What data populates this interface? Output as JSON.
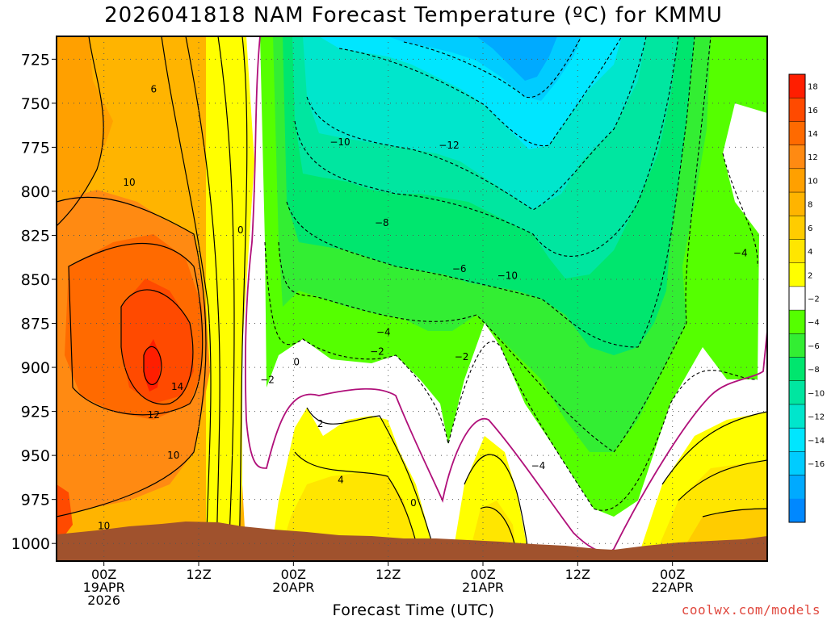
{
  "title": "2026041818 NAM Forecast Temperature (ºC) for KMMU",
  "xlabel": "Forecast Time (UTC)",
  "credit": "coolwx.com/models",
  "chart_data": {
    "type": "heatmap",
    "title": "2026041818 NAM Forecast Temperature (ºC) for KMMU",
    "xlabel": "Forecast Time (UTC)",
    "ylabel": "",
    "y_axis_reversed": true,
    "ylim": [
      1010,
      712
    ],
    "xlim": [
      -6,
      84
    ],
    "x_ticks": [
      {
        "hour": 0,
        "label": [
          "00Z",
          "19APR",
          "2026"
        ]
      },
      {
        "hour": 12,
        "label": [
          "12Z"
        ]
      },
      {
        "hour": 24,
        "label": [
          "00Z",
          "20APR"
        ]
      },
      {
        "hour": 36,
        "label": [
          "12Z"
        ]
      },
      {
        "hour": 48,
        "label": [
          "00Z",
          "21APR"
        ]
      },
      {
        "hour": 60,
        "label": [
          "12Z"
        ]
      },
      {
        "hour": 72,
        "label": [
          "00Z",
          "22APR"
        ]
      }
    ],
    "y_ticks": [
      725,
      750,
      775,
      800,
      825,
      850,
      875,
      900,
      925,
      950,
      975,
      1000
    ],
    "colorbar": {
      "labels": [
        18,
        16,
        14,
        12,
        10,
        8,
        6,
        4,
        2,
        -2,
        -4,
        -6,
        -8,
        -10,
        -12,
        -14,
        -16
      ],
      "colors": [
        "#ff1e00",
        "#ff4a00",
        "#ff6a00",
        "#ff8a12",
        "#ffa000",
        "#ffb400",
        "#ffcc00",
        "#ffe600",
        "#ffff00",
        "#ffffff",
        "#55ff00",
        "#33ee33",
        "#00e66e",
        "#00e6a0",
        "#00e6cc",
        "#00e6ff",
        "#00ccff",
        "#00aaff",
        "#0088ff"
      ]
    },
    "contour_labels": [
      {
        "text": "6",
        "hour": 6.3,
        "pressure": 742
      },
      {
        "text": "10",
        "hour": 3.2,
        "pressure": 795
      },
      {
        "text": "0",
        "hour": 17.3,
        "pressure": 822
      },
      {
        "text": "14",
        "hour": 9.3,
        "pressure": 911
      },
      {
        "text": "12",
        "hour": 6.3,
        "pressure": 927
      },
      {
        "text": "10",
        "hour": 8.8,
        "pressure": 950
      },
      {
        "text": "10",
        "hour": 0,
        "pressure": 990
      },
      {
        "text": "−10",
        "hour": 29.9,
        "pressure": 772
      },
      {
        "text": "−12",
        "hour": 43.7,
        "pressure": 774
      },
      {
        "text": "−8",
        "hour": 35.2,
        "pressure": 818
      },
      {
        "text": "−6",
        "hour": 45.0,
        "pressure": 844
      },
      {
        "text": "−10",
        "hour": 51.1,
        "pressure": 848
      },
      {
        "text": "−4",
        "hour": 80.6,
        "pressure": 835
      },
      {
        "text": "−4",
        "hour": 35.4,
        "pressure": 880
      },
      {
        "text": "−2",
        "hour": 34.6,
        "pressure": 891
      },
      {
        "text": "−2",
        "hour": 45.3,
        "pressure": 894
      },
      {
        "text": "−2",
        "hour": 20.7,
        "pressure": 907
      },
      {
        "text": "0",
        "hour": 24.4,
        "pressure": 897
      },
      {
        "text": "2",
        "hour": 27.4,
        "pressure": 932
      },
      {
        "text": "4",
        "hour": 30.0,
        "pressure": 964
      },
      {
        "text": "0",
        "hour": 39.2,
        "pressure": 977
      },
      {
        "text": "−4",
        "hour": 55.0,
        "pressure": 956
      }
    ]
  }
}
